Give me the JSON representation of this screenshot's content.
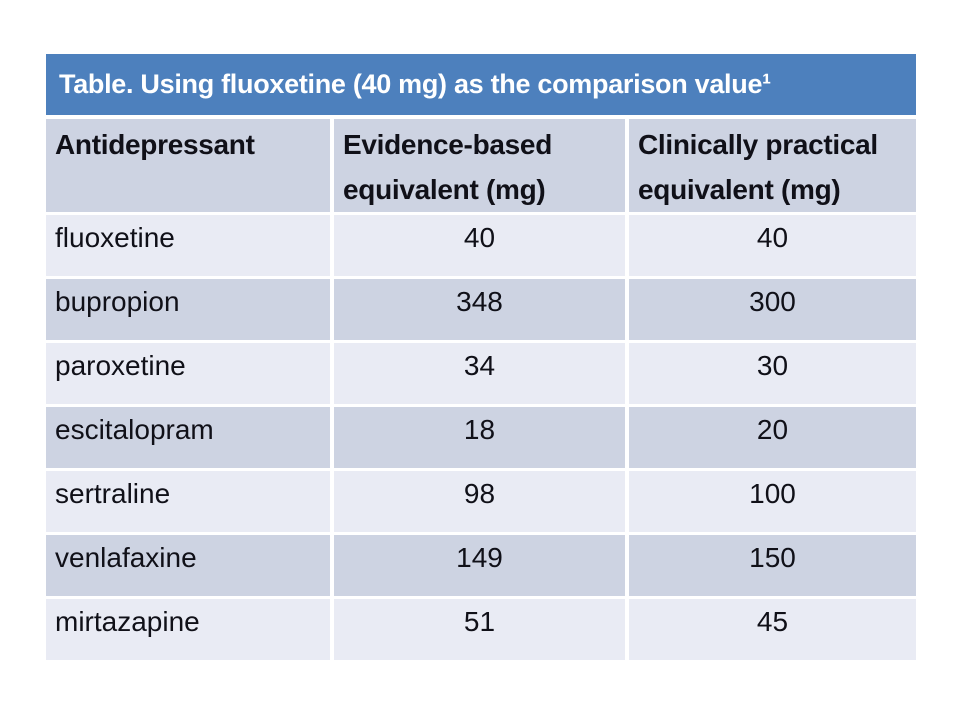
{
  "slide": {
    "title": "Table. Using fluoxetine (40 mg) as the comparison value¹"
  },
  "table": {
    "columns": [
      "Antidepressant",
      "Evidence-based equivalent (mg)",
      "Clinically practical equivalent (mg)"
    ],
    "rows": [
      {
        "drug": "fluoxetine",
        "evidence_based_mg": "40",
        "clinically_practical_mg": "40"
      },
      {
        "drug": "bupropion",
        "evidence_based_mg": "348",
        "clinically_practical_mg": "300"
      },
      {
        "drug": "paroxetine",
        "evidence_based_mg": "34",
        "clinically_practical_mg": "30"
      },
      {
        "drug": "escitalopram",
        "evidence_based_mg": "18",
        "clinically_practical_mg": "20"
      },
      {
        "drug": "sertraline",
        "evidence_based_mg": "98",
        "clinically_practical_mg": "100"
      },
      {
        "drug": "venlafaxine",
        "evidence_based_mg": "149",
        "clinically_practical_mg": "150"
      },
      {
        "drug": "mirtazapine",
        "evidence_based_mg": "51",
        "clinically_practical_mg": "45"
      }
    ]
  },
  "colors": {
    "title_bar": "#4d80bd",
    "title_text": "#ffffff",
    "header_row": "#cdd3e2",
    "band_dark": "#cdd3e2",
    "band_light": "#e9ebf4",
    "body_text": "#101018",
    "page_background": "#ffffff"
  }
}
